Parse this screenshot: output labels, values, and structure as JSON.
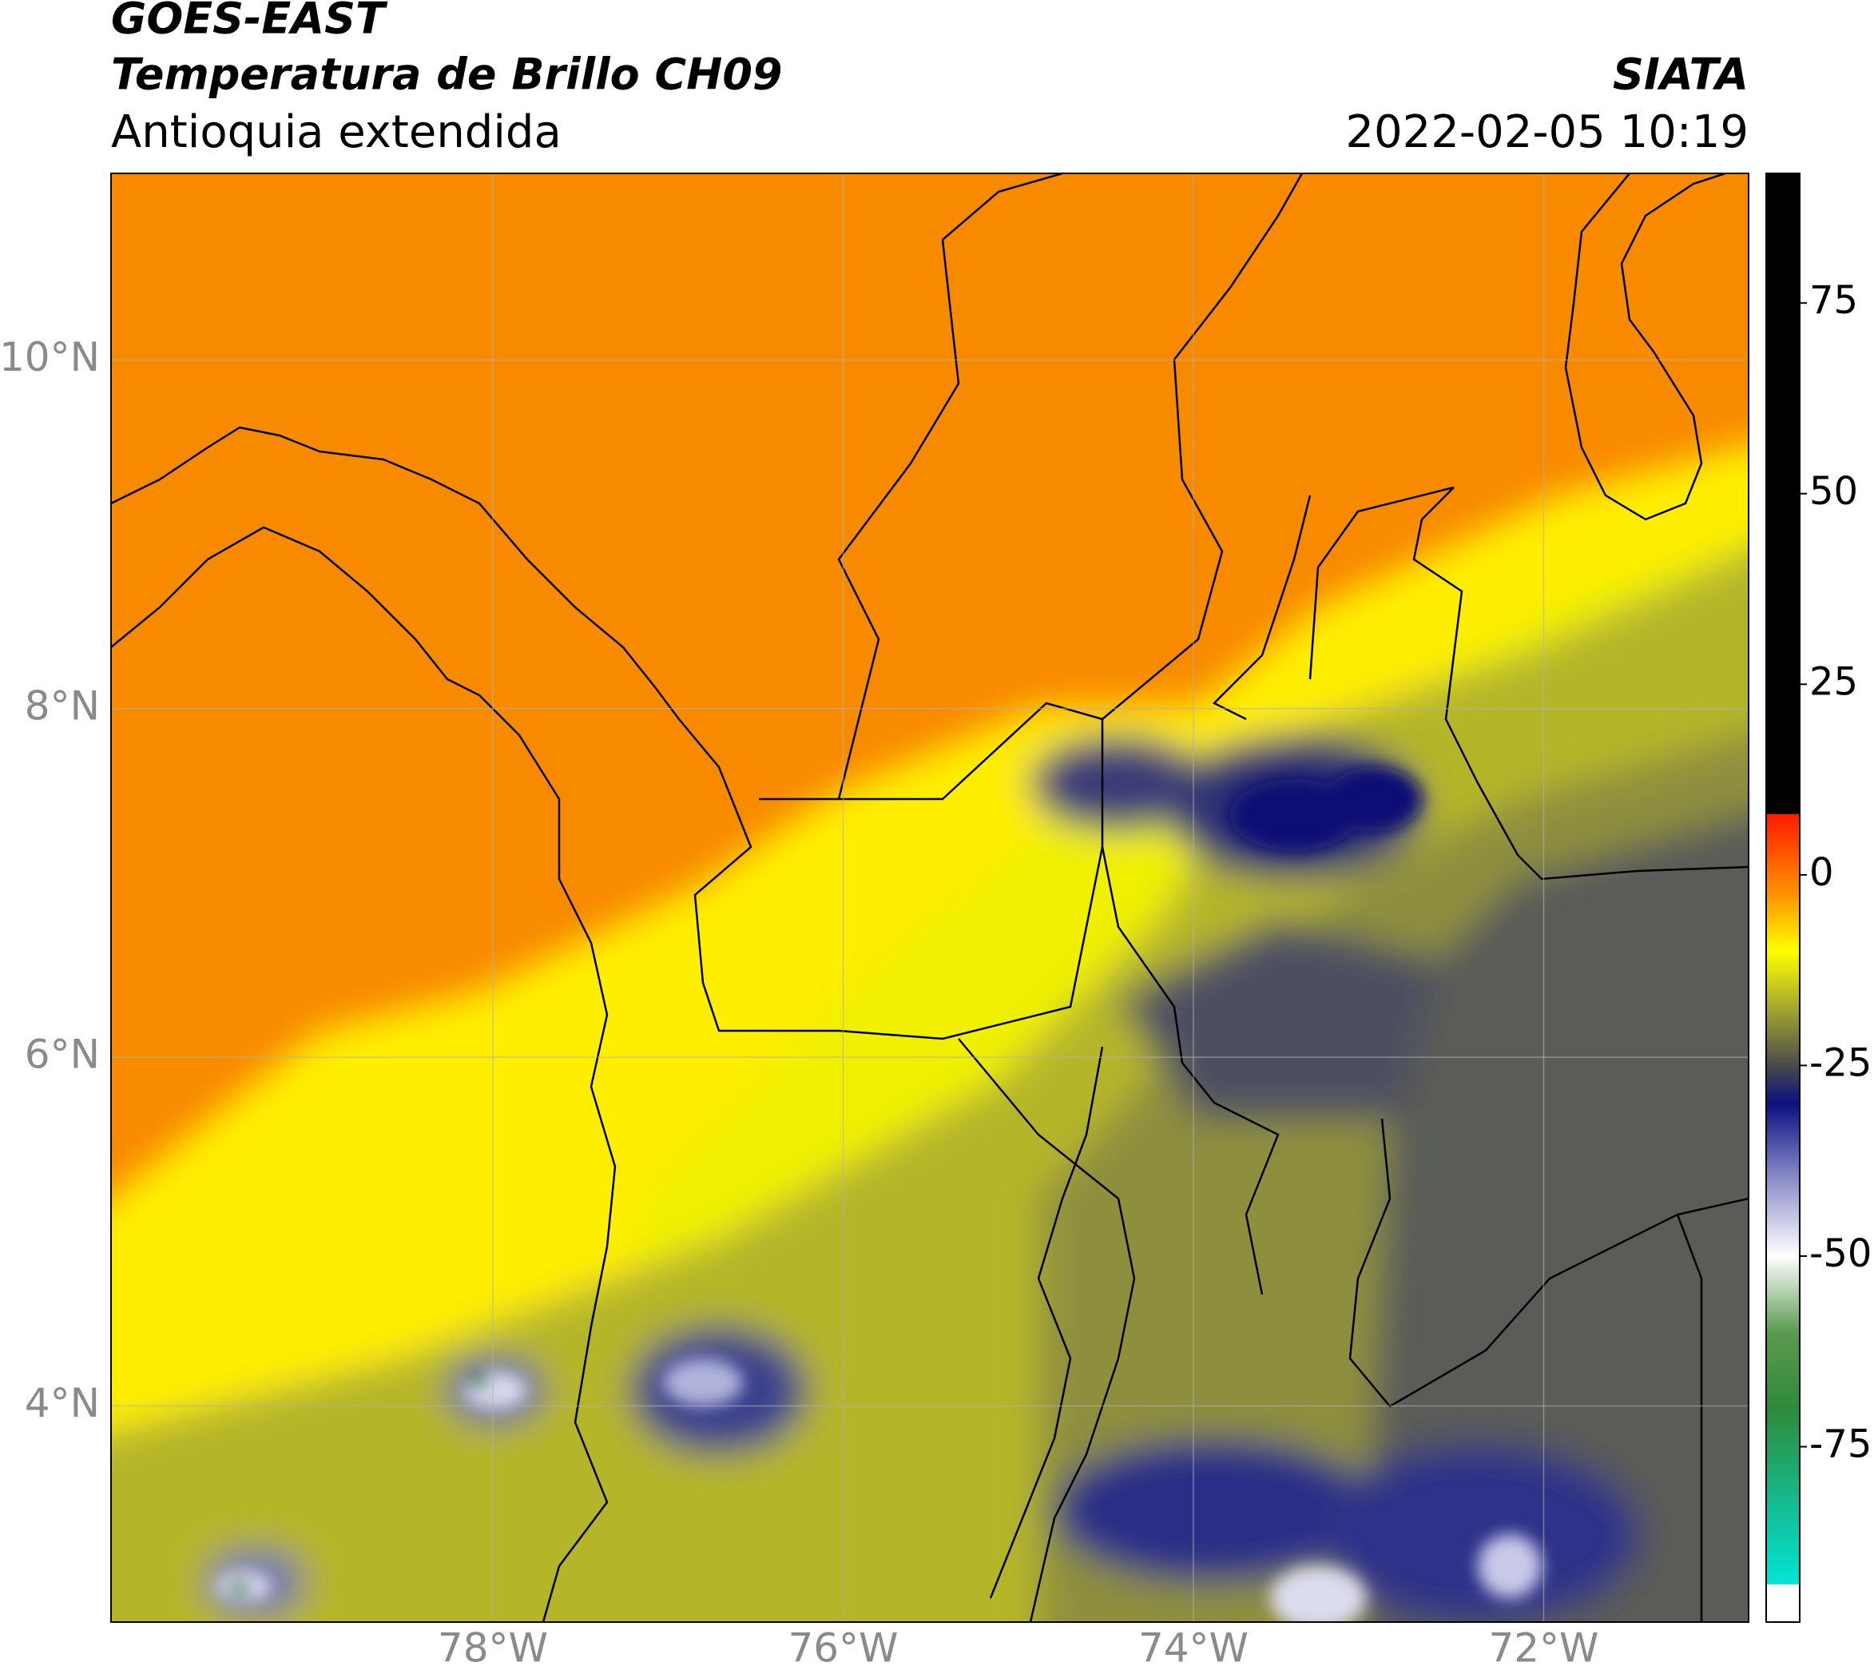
{
  "header": {
    "title": "GOES-EAST",
    "subtitle": "Temperatura de Brillo CH09",
    "region": "Antioquia extendida",
    "agency": "SIATA",
    "timestamp": "2022-02-05 10:19"
  },
  "map": {
    "xlim": [
      -80.18,
      -70.83
    ],
    "ylim": [
      2.76,
      11.07
    ],
    "xticks": [
      {
        "value": -78,
        "label": "78°W"
      },
      {
        "value": -76,
        "label": "76°W"
      },
      {
        "value": -74,
        "label": "74°W"
      },
      {
        "value": -72,
        "label": "72°W"
      }
    ],
    "yticks": [
      {
        "value": 4,
        "label": "4°N"
      },
      {
        "value": 6,
        "label": "6°N"
      },
      {
        "value": 8,
        "label": "8°N"
      },
      {
        "value": 10,
        "label": "10°N"
      }
    ],
    "grid": true
  },
  "colorbar": {
    "lim": [
      -98,
      92
    ],
    "ticks": [
      -75,
      -50,
      -25,
      0,
      25,
      50,
      75
    ],
    "stops": [
      {
        "value": -98,
        "color": "#ffffff"
      },
      {
        "value": -93,
        "color": "#ffffff"
      },
      {
        "value": -93,
        "color": "#00e5d8"
      },
      {
        "value": -70,
        "color": "#2f8a3a"
      },
      {
        "value": -60,
        "color": "#5a9a50"
      },
      {
        "value": -50,
        "color": "#ffffff"
      },
      {
        "value": -40,
        "color": "#8d8fc8"
      },
      {
        "value": -30,
        "color": "#0a0f80"
      },
      {
        "value": -25,
        "color": "#4a4a4a"
      },
      {
        "value": -18,
        "color": "#9ea030"
      },
      {
        "value": -10,
        "color": "#ffff00"
      },
      {
        "value": -3,
        "color": "#ff9900"
      },
      {
        "value": 8,
        "color": "#ff1a00"
      },
      {
        "value": 8,
        "color": "#000000"
      },
      {
        "value": 92,
        "color": "#000000"
      }
    ]
  }
}
